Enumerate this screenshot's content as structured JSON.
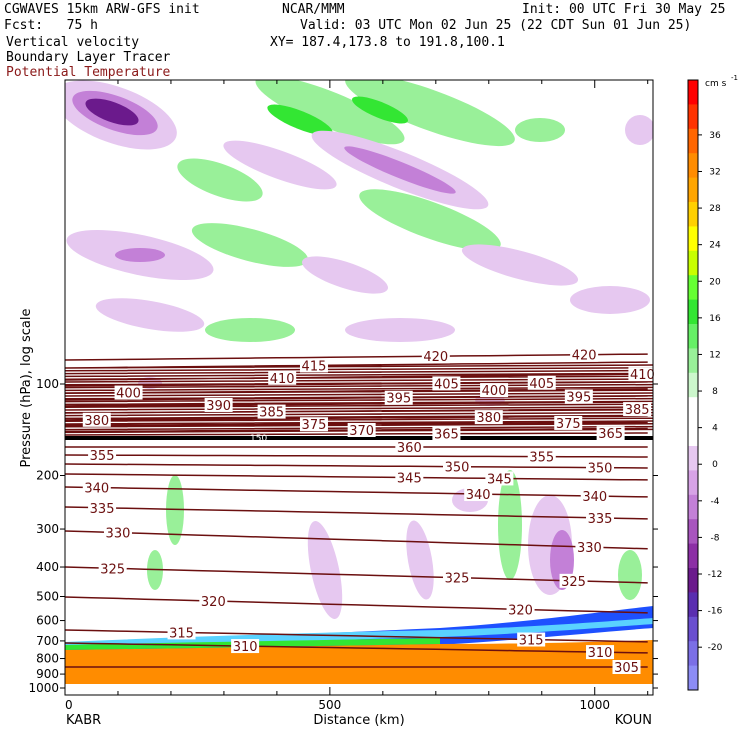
{
  "header": {
    "model": "CGWAVES 15km ARW-GFS init",
    "org": "NCAR/MMM",
    "init": "Init: 00 UTC Fri 30 May 25",
    "fcst": "Fcst:   75 h",
    "valid": "Valid: 03 UTC Mon 02 Jun 25 (22 CDT Sun 01 Jun 25)",
    "fields": [
      "Vertical velocity",
      "Boundary Layer Tracer",
      "Potential Temperature"
    ],
    "xy": "XY= 187.4,173.8 to 191.8,100.1"
  },
  "colors": {
    "theta_contour": "#6b0f0f",
    "potential_temperature_label": "#8b1a1a",
    "tropopause": "#000000"
  },
  "chart_data": {
    "type": "cross-section",
    "ylabel": "Pressure (hPa), log scale",
    "xlabel": "Distance (km)",
    "y_scale": "log",
    "y_ticks": [
      100,
      200,
      300,
      400,
      500,
      600,
      700,
      800,
      900,
      1000
    ],
    "x_ticks": [
      0,
      500,
      1000
    ],
    "x_range_km": [
      0,
      1110
    ],
    "left_endpoint": "KABR",
    "right_endpoint": "KOUN",
    "highlight_label": "150",
    "theta_contours": [
      {
        "theta": 420,
        "label_positions_km": [
          700,
          980
        ]
      },
      {
        "theta": 415,
        "label_positions_km": [
          470
        ]
      },
      {
        "theta": 410,
        "label_positions_km": [
          410,
          1090
        ]
      },
      {
        "theta": 405,
        "label_positions_km": [
          720,
          900
        ]
      },
      {
        "theta": 400,
        "label_positions_km": [
          120,
          810
        ]
      },
      {
        "theta": 395,
        "label_positions_km": [
          630,
          970
        ]
      },
      {
        "theta": 390,
        "label_positions_km": [
          290
        ]
      },
      {
        "theta": 385,
        "label_positions_km": [
          390,
          1080
        ]
      },
      {
        "theta": 380,
        "label_positions_km": [
          60,
          800
        ]
      },
      {
        "theta": 375,
        "label_positions_km": [
          470,
          950
        ]
      },
      {
        "theta": 370,
        "label_positions_km": [
          560
        ]
      },
      {
        "theta": 365,
        "label_positions_km": [
          720,
          1030
        ]
      },
      {
        "theta": 360,
        "label_positions_km": [
          650
        ]
      },
      {
        "theta": 355,
        "label_positions_km": [
          70,
          900
        ]
      },
      {
        "theta": 350,
        "label_positions_km": [
          740,
          1010
        ]
      },
      {
        "theta": 345,
        "label_positions_km": [
          650,
          820
        ]
      },
      {
        "theta": 340,
        "label_positions_km": [
          60,
          780,
          1000
        ]
      },
      {
        "theta": 335,
        "label_positions_km": [
          70,
          1010
        ]
      },
      {
        "theta": 330,
        "label_positions_km": [
          100,
          990
        ]
      },
      {
        "theta": 325,
        "label_positions_km": [
          90,
          740,
          960
        ]
      },
      {
        "theta": 320,
        "label_positions_km": [
          280,
          860
        ]
      },
      {
        "theta": 315,
        "label_positions_km": [
          220,
          880
        ]
      },
      {
        "theta": 310,
        "label_positions_km": [
          340,
          1010
        ]
      },
      {
        "theta": 305,
        "label_positions_km": [
          1060
        ]
      }
    ],
    "colorbar": {
      "units": "cm s",
      "labels": [
        36,
        32,
        28,
        24,
        20,
        16,
        12,
        8,
        4,
        0,
        -4,
        -8,
        -12,
        -16,
        -20
      ],
      "colors": [
        "#ff0000",
        "#ff3300",
        "#ff6600",
        "#ff8c00",
        "#ffa500",
        "#ffd000",
        "#ffff00",
        "#c8ff00",
        "#66ff33",
        "#33e633",
        "#66f066",
        "#99f099",
        "#ccf7cc",
        "#ffffff",
        "#ffffff",
        "#e6c8f0",
        "#d7a3e6",
        "#c380d7",
        "#a855be",
        "#8c2fa5",
        "#6b1a8c",
        "#5a2eb0",
        "#6a4fd0",
        "#7b6fe6",
        "#8c8cf5"
      ]
    }
  }
}
